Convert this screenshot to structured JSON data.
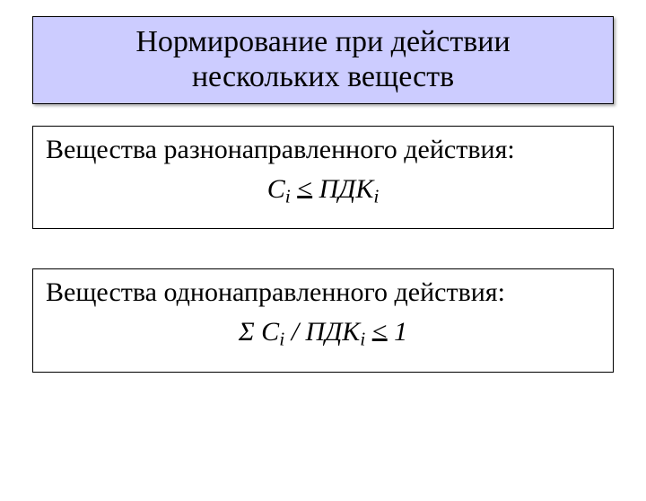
{
  "colors": {
    "title_bg": "#ccccff",
    "border": "#000000",
    "text": "#000000",
    "page_bg": "#ffffff"
  },
  "typography": {
    "family": "Times New Roman",
    "title_fontsize_pt": 26,
    "body_fontsize_pt": 22
  },
  "title": {
    "line1": "Нормирование при действии",
    "line2": "нескольких веществ"
  },
  "box1": {
    "description": "Вещества разнонаправленного действия:",
    "formula": {
      "C": "С",
      "i1": "i",
      "le": "<",
      "PDK": "ПДК",
      "i2": "i"
    }
  },
  "box2": {
    "description": "Вещества однонаправленного действия:",
    "formula": {
      "sigma": "Σ",
      "C": "С",
      "i1": "i",
      "slash": "/",
      "PDK": "ПДК",
      "i2": "i",
      "le": "<",
      "one": "1"
    }
  }
}
